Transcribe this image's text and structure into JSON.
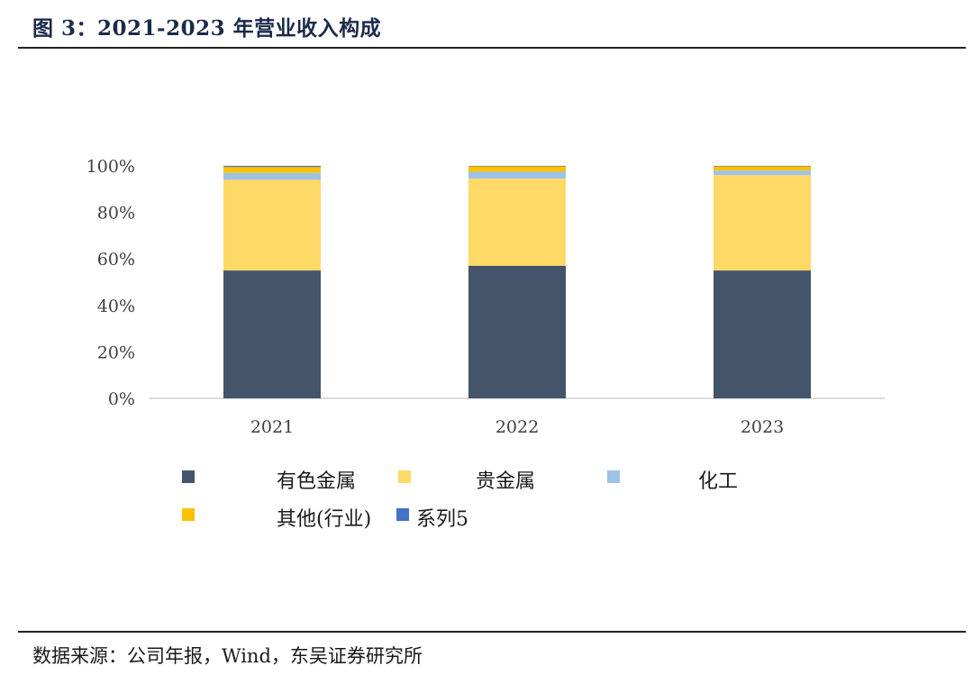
{
  "figure": {
    "title": "图 3：2021-2023 年营业收入构成",
    "source": "数据来源：公司年报，Wind，东吴证券研究所"
  },
  "chart_data": {
    "type": "bar",
    "stacked": true,
    "categories": [
      "2021",
      "2022",
      "2023"
    ],
    "y_ticks": [
      "0%",
      "20%",
      "40%",
      "60%",
      "80%",
      "100%"
    ],
    "ylim": [
      0,
      100
    ],
    "grid": false,
    "legend_position": "bottom",
    "series": [
      {
        "name": "有色金属",
        "color": "#44546a",
        "values": [
          55,
          57,
          55
        ]
      },
      {
        "name": "贵金属",
        "color": "#ffd966",
        "values": [
          39,
          37.5,
          41
        ]
      },
      {
        "name": "化工",
        "color": "#9dc3e6",
        "values": [
          3,
          3,
          2
        ]
      },
      {
        "name": "其他(行业)",
        "color": "#ffc000",
        "values": [
          2.5,
          2.3,
          1.8
        ]
      },
      {
        "name": "系列5",
        "color": "#4472c4",
        "values": [
          0.5,
          0.2,
          0.2
        ]
      }
    ]
  }
}
